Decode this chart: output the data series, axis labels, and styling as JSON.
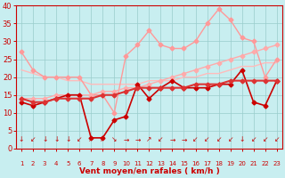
{
  "x": [
    1,
    2,
    3,
    4,
    5,
    6,
    7,
    8,
    9,
    10,
    11,
    12,
    13,
    14,
    15,
    16,
    17,
    18,
    19,
    20,
    21,
    22,
    23
  ],
  "series": [
    {
      "name": "rafales_light",
      "color": "#ff9999",
      "linewidth": 1.0,
      "marker": "D",
      "markersize": 2.5,
      "y": [
        27,
        22,
        20,
        20,
        20,
        20,
        15,
        15,
        10,
        26,
        29,
        33,
        29,
        28,
        28,
        30,
        35,
        39,
        36,
        31,
        30,
        20,
        25
      ]
    },
    {
      "name": "trend_light",
      "color": "#ffbbbb",
      "linewidth": 1.0,
      "marker": null,
      "markersize": 0,
      "y": [
        22,
        21,
        20,
        20,
        19,
        19,
        18,
        18,
        18,
        18,
        18,
        19,
        19,
        19,
        20,
        20,
        21,
        21,
        22,
        23,
        23,
        24,
        24
      ]
    },
    {
      "name": "moyen_light",
      "color": "#ffaaaa",
      "linewidth": 1.0,
      "marker": "D",
      "markersize": 2.5,
      "y": [
        14,
        14,
        14,
        15,
        15,
        15,
        15,
        16,
        16,
        17,
        17,
        18,
        19,
        20,
        21,
        22,
        23,
        24,
        25,
        26,
        27,
        28,
        29
      ]
    },
    {
      "name": "rafales_dark",
      "color": "#cc0000",
      "linewidth": 1.2,
      "marker": "D",
      "markersize": 2.5,
      "y": [
        13,
        12,
        13,
        14,
        15,
        15,
        3,
        3,
        8,
        9,
        18,
        14,
        17,
        19,
        17,
        17,
        17,
        18,
        18,
        22,
        13,
        12,
        19
      ]
    },
    {
      "name": "moyen_dark",
      "color": "#dd3333",
      "linewidth": 1.5,
      "marker": "D",
      "markersize": 2.5,
      "y": [
        14,
        13,
        13,
        14,
        14,
        14,
        14,
        15,
        15,
        16,
        17,
        17,
        17,
        17,
        17,
        18,
        18,
        18,
        19,
        19,
        19,
        19,
        19
      ]
    }
  ],
  "wind_arrows": [
    "↓",
    "↙",
    "↓",
    "↓",
    "↓",
    "↙",
    "↗",
    "↗",
    "↘",
    "→",
    "→",
    "↗",
    "↙",
    "→",
    "→",
    "↙",
    "↙",
    "↙",
    "↙",
    "↓",
    "↙",
    "↙",
    "↙"
  ],
  "xlim": [
    0.5,
    23.5
  ],
  "ylim": [
    0,
    40
  ],
  "yticks": [
    0,
    5,
    10,
    15,
    20,
    25,
    30,
    35,
    40
  ],
  "xticks": [
    1,
    2,
    3,
    4,
    5,
    6,
    7,
    8,
    9,
    10,
    11,
    12,
    13,
    14,
    15,
    16,
    17,
    18,
    19,
    20,
    21,
    22,
    23
  ],
  "xlabel": "Vent moyen/en rafales ( km/h )",
  "xlabel_fontsize": 6.5,
  "xlabel_color": "#cc0000",
  "background_color": "#c8eef0",
  "grid_color": "#99cccc",
  "tick_color": "#cc0000",
  "axis_color": "#cc0000",
  "ytick_fontsize": 6,
  "xtick_fontsize": 5
}
